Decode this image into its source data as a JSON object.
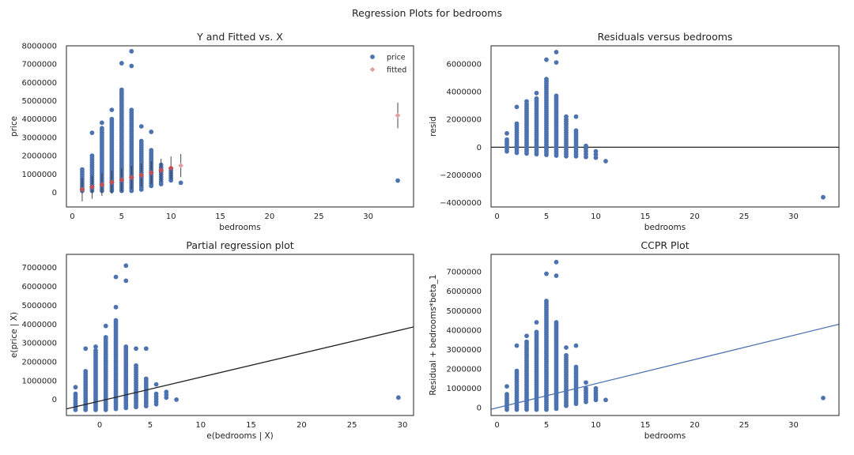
{
  "figure": {
    "suptitle": "Regression Plots for bedrooms"
  },
  "colors": {
    "points": "#4c72b0",
    "fitted": "#dd8452",
    "fitted_fill": "#e0a0a0",
    "fitted_marker": "#c44e52",
    "line_black": "#222222",
    "line_blue": "#4c72b0",
    "axes": "#222222"
  },
  "chart_data": [
    {
      "type": "scatter",
      "title": "Y and Fitted vs. X",
      "xlabel": "bedrooms",
      "ylabel": "price",
      "xlim": [
        -0.6,
        34.6
      ],
      "ylim": [
        -800000,
        8000000
      ],
      "xticks": [
        0,
        5,
        10,
        15,
        20,
        25,
        30
      ],
      "yticks": [
        0,
        1000000,
        2000000,
        3000000,
        4000000,
        5000000,
        6000000,
        7000000,
        8000000
      ],
      "ytick_labels": [
        "0",
        "1000000",
        "2000000",
        "3000000",
        "4000000",
        "5000000",
        "6000000",
        "7000000",
        "8000000"
      ],
      "legend": {
        "position": "top-right",
        "entries": [
          "price",
          "fitted"
        ]
      },
      "series": [
        {
          "name": "price",
          "kind": "strips",
          "strips": [
            {
              "x": 1,
              "min": 80000,
              "max": 1250000,
              "outliers": []
            },
            {
              "x": 2,
              "min": 80000,
              "max": 2000000,
              "outliers": [
                3250000
              ]
            },
            {
              "x": 3,
              "min": 80000,
              "max": 3500000,
              "outliers": [
                3800000
              ]
            },
            {
              "x": 4,
              "min": 80000,
              "max": 4000000,
              "outliers": [
                4500000
              ]
            },
            {
              "x": 5,
              "min": 80000,
              "max": 5600000,
              "outliers": [
                7050000
              ]
            },
            {
              "x": 6,
              "min": 80000,
              "max": 4500000,
              "outliers": [
                6900000,
                7700000
              ]
            },
            {
              "x": 7,
              "min": 150000,
              "max": 2800000,
              "outliers": [
                3600000
              ]
            },
            {
              "x": 8,
              "min": 350000,
              "max": 2300000,
              "outliers": [
                3300000
              ]
            },
            {
              "x": 9,
              "min": 450000,
              "max": 1500000,
              "outliers": []
            },
            {
              "x": 10,
              "min": 650000,
              "max": 1300000,
              "outliers": []
            },
            {
              "x": 11,
              "min": 520000,
              "max": 520000,
              "outliers": []
            },
            {
              "x": 33,
              "min": 640000,
              "max": 640000,
              "outliers": []
            }
          ]
        },
        {
          "name": "fitted",
          "kind": "errorbar",
          "points": [
            {
              "x": 1,
              "y": 160000,
              "lo": -500000,
              "hi": 780000
            },
            {
              "x": 2,
              "y": 290000,
              "lo": -350000,
              "hi": 900000
            },
            {
              "x": 3,
              "y": 420000,
              "lo": -200000,
              "hi": 1050000
            },
            {
              "x": 4,
              "y": 550000,
              "lo": -80000,
              "hi": 1180000
            },
            {
              "x": 5,
              "y": 680000,
              "lo": 50000,
              "hi": 1300000
            },
            {
              "x": 6,
              "y": 810000,
              "lo": 180000,
              "hi": 1430000
            },
            {
              "x": 7,
              "y": 940000,
              "lo": 310000,
              "hi": 1570000
            },
            {
              "x": 8,
              "y": 1070000,
              "lo": 440000,
              "hi": 1700000
            },
            {
              "x": 9,
              "y": 1200000,
              "lo": 570000,
              "hi": 1830000
            },
            {
              "x": 10,
              "y": 1330000,
              "lo": 700000,
              "hi": 1960000
            },
            {
              "x": 11,
              "y": 1460000,
              "lo": 830000,
              "hi": 2090000
            },
            {
              "x": 33,
              "y": 4200000,
              "lo": 3500000,
              "hi": 4900000
            }
          ]
        }
      ]
    },
    {
      "type": "scatter",
      "title": "Residuals versus bedrooms",
      "xlabel": "bedrooms",
      "ylabel": "resid",
      "xlim": [
        -0.6,
        34.6
      ],
      "ylim": [
        -4300000,
        7300000
      ],
      "xticks": [
        0,
        5,
        10,
        15,
        20,
        25,
        30
      ],
      "yticks": [
        -4000000,
        -2000000,
        0,
        2000000,
        4000000,
        6000000
      ],
      "ytick_labels": [
        "−4000000",
        "−2000000",
        "0",
        "2000000",
        "4000000",
        "6000000"
      ],
      "hline": 0,
      "series": [
        {
          "name": "resid",
          "kind": "strips",
          "strips": [
            {
              "x": 1,
              "min": -300000,
              "max": 550000,
              "outliers": [
                1000000
              ]
            },
            {
              "x": 2,
              "min": -400000,
              "max": 1700000,
              "outliers": [
                2900000
              ]
            },
            {
              "x": 3,
              "min": -450000,
              "max": 3100000,
              "outliers": [
                3300000
              ]
            },
            {
              "x": 4,
              "min": -500000,
              "max": 3500000,
              "outliers": [
                3900000
              ]
            },
            {
              "x": 5,
              "min": -550000,
              "max": 4900000,
              "outliers": [
                6300000
              ]
            },
            {
              "x": 6,
              "min": -600000,
              "max": 3700000,
              "outliers": [
                6100000,
                6850000
              ]
            },
            {
              "x": 7,
              "min": -650000,
              "max": 2000000,
              "outliers": [
                2200000
              ]
            },
            {
              "x": 8,
              "min": -650000,
              "max": 1200000,
              "outliers": [
                2200000
              ]
            },
            {
              "x": 9,
              "min": -700000,
              "max": 100000,
              "outliers": []
            },
            {
              "x": 10,
              "min": -750000,
              "max": -300000,
              "outliers": []
            },
            {
              "x": 11,
              "min": -1000000,
              "max": -1000000,
              "outliers": []
            },
            {
              "x": 33,
              "min": -3600000,
              "max": -3600000,
              "outliers": []
            }
          ]
        }
      ]
    },
    {
      "type": "scatter",
      "title": "Partial regression plot",
      "xlabel": "e(bedrooms | X)",
      "ylabel": "e(price | X)",
      "xlim": [
        -3.3,
        31.1
      ],
      "ylim": [
        -850000,
        7700000
      ],
      "xticks": [
        0,
        5,
        10,
        15,
        20,
        25,
        30
      ],
      "yticks": [
        0,
        1000000,
        2000000,
        3000000,
        4000000,
        5000000,
        6000000,
        7000000
      ],
      "ytick_labels": [
        "0",
        "1000000",
        "2000000",
        "3000000",
        "4000000",
        "5000000",
        "6000000",
        "7000000"
      ],
      "line": {
        "x": [
          -3.3,
          31.1
        ],
        "y": [
          -500000,
          3850000
        ]
      },
      "series": [
        {
          "name": "e(price | X)",
          "kind": "strips",
          "strips": [
            {
              "x": -2.4,
              "min": -550000,
              "max": 300000,
              "outliers": [
                650000
              ]
            },
            {
              "x": -1.4,
              "min": -550000,
              "max": 1500000,
              "outliers": [
                2700000
              ]
            },
            {
              "x": -0.4,
              "min": -550000,
              "max": 2600000,
              "outliers": [
                2800000
              ]
            },
            {
              "x": 0.6,
              "min": -550000,
              "max": 3300000,
              "outliers": [
                3900000
              ]
            },
            {
              "x": 1.6,
              "min": -500000,
              "max": 4200000,
              "outliers": [
                4900000,
                6500000
              ]
            },
            {
              "x": 2.6,
              "min": -450000,
              "max": 2800000,
              "outliers": [
                6300000,
                7100000
              ]
            },
            {
              "x": 3.6,
              "min": -400000,
              "max": 1800000,
              "outliers": [
                2700000
              ]
            },
            {
              "x": 4.6,
              "min": -350000,
              "max": 1100000,
              "outliers": [
                2700000
              ]
            },
            {
              "x": 5.6,
              "min": -250000,
              "max": 300000,
              "outliers": [
                800000
              ]
            },
            {
              "x": 6.6,
              "min": 100000,
              "max": 400000,
              "outliers": []
            },
            {
              "x": 7.6,
              "min": -10000,
              "max": -10000,
              "outliers": []
            },
            {
              "x": 29.6,
              "min": 100000,
              "max": 100000,
              "outliers": []
            }
          ]
        }
      ]
    },
    {
      "type": "scatter",
      "title": "CCPR Plot",
      "xlabel": "bedrooms",
      "ylabel": "Residual + bedrooms*beta_1",
      "xlim": [
        -0.6,
        34.6
      ],
      "ylim": [
        -400000,
        7900000
      ],
      "xticks": [
        0,
        5,
        10,
        15,
        20,
        25,
        30
      ],
      "yticks": [
        0,
        1000000,
        2000000,
        3000000,
        4000000,
        5000000,
        6000000,
        7000000
      ],
      "ytick_labels": [
        "0",
        "1000000",
        "2000000",
        "3000000",
        "4000000",
        "5000000",
        "6000000",
        "7000000"
      ],
      "line": {
        "x": [
          -0.6,
          34.6
        ],
        "y": [
          -80000,
          4300000
        ]
      },
      "series": [
        {
          "name": "Residual + bedrooms*beta_1",
          "kind": "strips",
          "strips": [
            {
              "x": 1,
              "min": -100000,
              "max": 700000,
              "outliers": [
                1100000
              ]
            },
            {
              "x": 2,
              "min": -100000,
              "max": 1900000,
              "outliers": [
                3200000
              ]
            },
            {
              "x": 3,
              "min": -100000,
              "max": 3400000,
              "outliers": [
                3700000
              ]
            },
            {
              "x": 4,
              "min": -100000,
              "max": 3900000,
              "outliers": [
                4400000
              ]
            },
            {
              "x": 5,
              "min": -100000,
              "max": 5500000,
              "outliers": [
                6900000
              ]
            },
            {
              "x": 6,
              "min": -50000,
              "max": 4400000,
              "outliers": [
                6800000,
                7500000
              ]
            },
            {
              "x": 7,
              "min": 100000,
              "max": 2700000,
              "outliers": [
                3100000
              ]
            },
            {
              "x": 8,
              "min": 200000,
              "max": 2100000,
              "outliers": [
                3200000
              ]
            },
            {
              "x": 9,
              "min": 300000,
              "max": 1000000,
              "outliers": [
                1300000
              ]
            },
            {
              "x": 10,
              "min": 400000,
              "max": 1000000,
              "outliers": []
            },
            {
              "x": 11,
              "min": 400000,
              "max": 400000,
              "outliers": []
            },
            {
              "x": 33,
              "min": 500000,
              "max": 500000,
              "outliers": []
            }
          ]
        }
      ]
    }
  ]
}
